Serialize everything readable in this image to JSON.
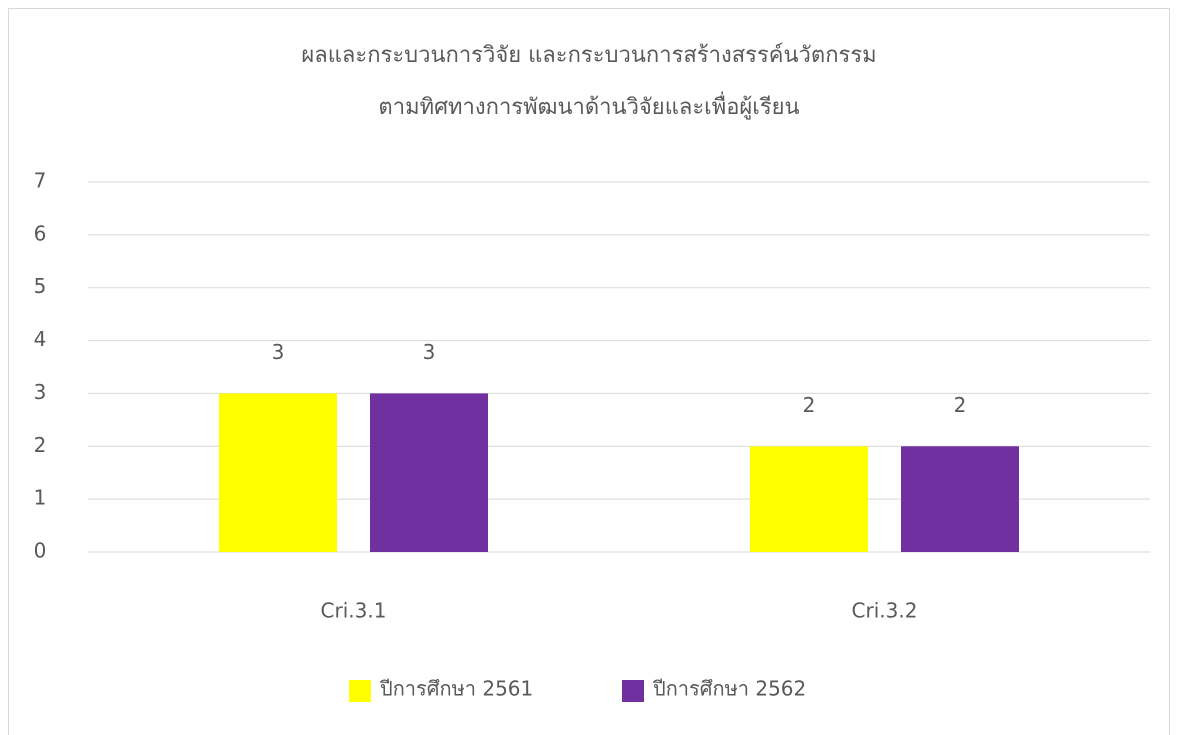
{
  "chart_data": {
    "type": "bar",
    "title": [
      "ผลและกระบวนการวิจัย และกระบวนการสร้างสรรค์นวัตกรรม",
      "ตามทิศทางการพัฒนาด้านวิจัยและเพื่อผู้เรียน"
    ],
    "categories": [
      "Cri.3.1",
      "Cri.3.2"
    ],
    "series": [
      {
        "name": "ปีการศึกษา 2561",
        "color": "#ffff00",
        "values": [
          3,
          2
        ]
      },
      {
        "name": "ปีการศึกษา 2562",
        "color": "#7030a0",
        "values": [
          3,
          2
        ]
      }
    ],
    "ylim": [
      0,
      7
    ],
    "yticks": [
      0,
      1,
      2,
      3,
      4,
      5,
      6,
      7
    ],
    "grid": true,
    "legend": "bottom",
    "data_labels": true
  }
}
